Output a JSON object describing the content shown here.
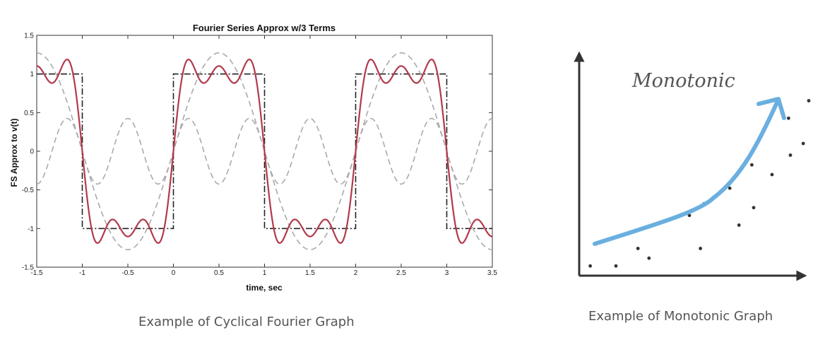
{
  "chart_data": [
    {
      "type": "line",
      "title": "Fourier Series Approx w/3 Terms",
      "xlabel": "time, sec",
      "ylabel": "FS Approx to v(t)",
      "xlim": [
        -1.5,
        3.5
      ],
      "ylim": [
        -1.5,
        1.5
      ],
      "xticks": [
        -1.5,
        -1,
        -0.5,
        0,
        0.5,
        1,
        1.5,
        2,
        2.5,
        3,
        3.5
      ],
      "yticks": [
        1.5,
        1,
        0.5,
        0,
        -0.5,
        -1,
        -1.5
      ],
      "grid": false,
      "series": [
        {
          "kind": "square-wave",
          "period": 2,
          "amplitude": 1,
          "color": "#222222",
          "style": "dash-dot"
        },
        {
          "kind": "harmonic",
          "coefficient": 1.2732,
          "frequency_hz": 0.5,
          "color": "#aaaaaa",
          "style": "dashed"
        },
        {
          "kind": "harmonic",
          "coefficient": 0.4244,
          "frequency_hz": 1.5,
          "color": "#aaaaaa",
          "style": "dashed"
        },
        {
          "kind": "fourier-sum",
          "terms": 3,
          "period": 2,
          "color": "#b23a4a",
          "style": "solid"
        }
      ]
    },
    {
      "type": "scatter",
      "title": "Monotonic",
      "axes_labels": false,
      "arrow_color": "#6aafe0",
      "points": [
        [
          0.06,
          0.05
        ],
        [
          0.2,
          0.05
        ],
        [
          0.32,
          0.14
        ],
        [
          0.38,
          0.09
        ],
        [
          0.6,
          0.31
        ],
        [
          0.66,
          0.14
        ],
        [
          0.68,
          0.37
        ],
        [
          0.82,
          0.45
        ],
        [
          0.87,
          0.26
        ],
        [
          0.94,
          0.57
        ],
        [
          0.95,
          0.35
        ],
        [
          1.05,
          0.52
        ],
        [
          1.15,
          0.62
        ],
        [
          1.14,
          0.81
        ],
        [
          1.25,
          0.9
        ],
        [
          1.22,
          0.68
        ]
      ]
    }
  ],
  "captions": {
    "left": "Example of Cyclical Fourier Graph",
    "right": "Example of Monotonic Graph"
  }
}
